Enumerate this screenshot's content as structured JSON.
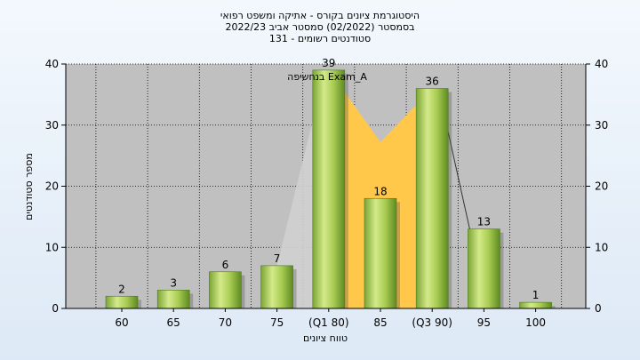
{
  "chart_data": {
    "type": "bar",
    "title_lines": [
      "היסטוגרמת ציונים בקורס - אתיקה ומשפט רפואי",
      "בסמסטר  (02/2022)  סמסטר אביב 2022/23",
      "סטודנטים רשומים - 131"
    ],
    "xlabel": "טווח ציונים",
    "ylabel": "מספר סטודנטים",
    "ylim": [
      0,
      40
    ],
    "yticks": [
      0,
      10,
      20,
      30,
      40
    ],
    "categories": [
      "60",
      "65",
      "70",
      "75",
      "(Q1 80)",
      "85",
      "(Q3 90)",
      "95",
      "100"
    ],
    "values": [
      2,
      3,
      6,
      7,
      39,
      18,
      36,
      13,
      1
    ],
    "overlay_label": "בנחשיפה Exam_A",
    "grid": true,
    "colors": {
      "plot_bg": "#c0c0c0",
      "bar_light": "#c8e07a",
      "bar_dark": "#6f9a2a",
      "overlay_fill": "#ffc84a",
      "overlay_shadow": "#d0d0d0",
      "gridline": "#000000"
    }
  }
}
